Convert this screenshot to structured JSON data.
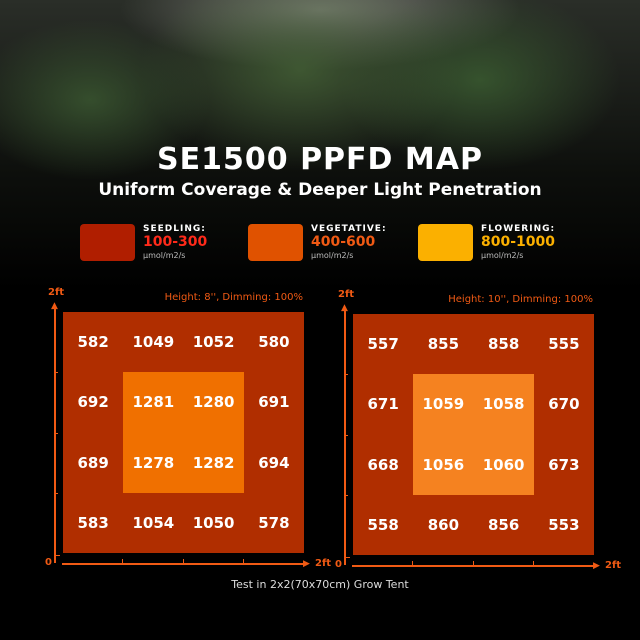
{
  "title": "SE1500 PPFD MAP",
  "subtitle": "Uniform Coverage & Deeper Light Penetration",
  "legend": [
    {
      "name": "SEEDLING:",
      "range": "100-300",
      "unit": "μmol/m2/s",
      "color": "#b01e00",
      "text_color": "#ff2a1a"
    },
    {
      "name": "VEGETATIVE:",
      "range": "400-600",
      "unit": "μmol/m2/s",
      "color": "#e05200",
      "text_color": "#f05a14"
    },
    {
      "name": "FLOWERING:",
      "range": "800-1000",
      "unit": "μmol/m2/s",
      "color": "#fbb000",
      "text_color": "#fbb000"
    }
  ],
  "footer": "Test in 2x2(70x70cm) Grow Tent",
  "chart_data": [
    {
      "type": "heatmap",
      "title": "Height: 8'', Dimming: 100%",
      "xlabel": "2ft",
      "ylabel": "2ft",
      "origin": "0",
      "xlim": [
        "0",
        "2ft"
      ],
      "ylim": [
        "0",
        "2ft"
      ],
      "values": [
        [
          582,
          1049,
          1052,
          580
        ],
        [
          692,
          1281,
          1280,
          691
        ],
        [
          689,
          1278,
          1282,
          694
        ],
        [
          583,
          1054,
          1050,
          578
        ]
      ],
      "colors": {
        "outer": "#b02e00",
        "inner": "#f07000"
      }
    },
    {
      "type": "heatmap",
      "title": "Height: 10'', Dimming: 100%",
      "xlabel": "2ft",
      "ylabel": "2ft",
      "origin": "0",
      "xlim": [
        "0",
        "2ft"
      ],
      "ylim": [
        "0",
        "2ft"
      ],
      "values": [
        [
          557,
          855,
          858,
          555
        ],
        [
          671,
          1059,
          1058,
          670
        ],
        [
          668,
          1056,
          1060,
          673
        ],
        [
          558,
          860,
          856,
          553
        ]
      ],
      "colors": {
        "outer": "#b02e00",
        "inner": "#f58220"
      }
    }
  ]
}
